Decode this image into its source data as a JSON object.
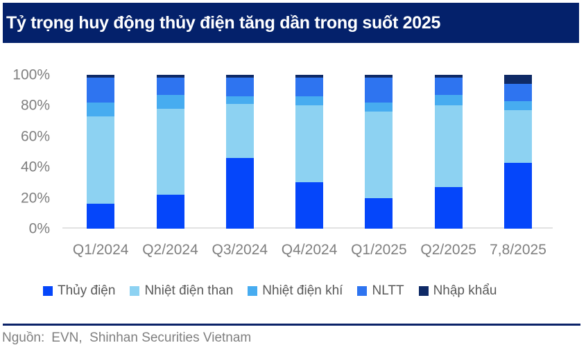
{
  "chart_data": {
    "type": "bar",
    "stacked": true,
    "title": "Tỷ trọng huy động thủy điện tăng dần trong suốt 2025",
    "categories": [
      "Q1/2024",
      "Q2/2024",
      "Q3/2024",
      "Q4/2024",
      "Q1/2025",
      "Q2/2025",
      "7,8/2025"
    ],
    "series": [
      {
        "name": "Thủy điện",
        "color": "#0546FA",
        "values": [
          16,
          22,
          46,
          30,
          20,
          27,
          43
        ]
      },
      {
        "name": "Nhiệt điện than",
        "color": "#8DD2F2",
        "values": [
          57,
          56,
          35,
          50,
          56,
          53,
          34
        ]
      },
      {
        "name": "Nhiệt điện khí",
        "color": "#47ACF0",
        "values": [
          9,
          9,
          5,
          6,
          6,
          7,
          6
        ]
      },
      {
        "name": "NLTT",
        "color": "#2E74F0",
        "values": [
          16,
          11,
          12,
          12,
          16,
          11,
          11
        ]
      },
      {
        "name": "Nhập khẩu",
        "color": "#0F2A66",
        "values": [
          2,
          2,
          2,
          2,
          2,
          2,
          6
        ]
      }
    ],
    "ylabel": "",
    "xlabel": "",
    "ylim": [
      0,
      100
    ],
    "yticks_top_to_bottom": [
      "100%",
      "80%",
      "60%",
      "40%",
      "20%",
      "0%"
    ],
    "grid": false,
    "legend_position": "bottom"
  },
  "header": {
    "bar_color": "#04216B"
  },
  "footer": {
    "source_label": "Nguồn:",
    "source_text": "EVN,  Shinhan Securities Vietnam"
  }
}
